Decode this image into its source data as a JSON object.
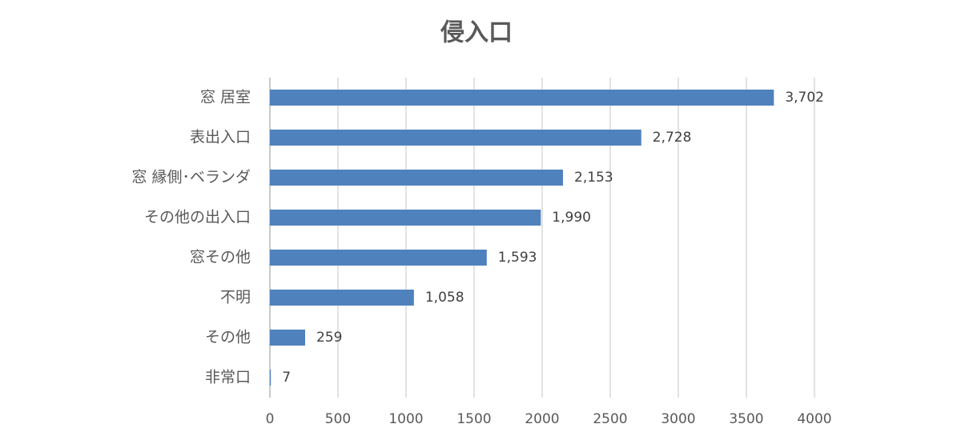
{
  "chart_data": {
    "type": "bar",
    "orientation": "horizontal",
    "title": "侵入口",
    "categories": [
      "窓 居室",
      "表出入口",
      "窓 縁側･ベランダ",
      "その他の出入口",
      "窓その他",
      "不明",
      "その他",
      "非常口"
    ],
    "values": [
      3702,
      2728,
      2153,
      1990,
      1593,
      1058,
      259,
      7
    ],
    "value_labels": [
      "3,702",
      "2,728",
      "2,153",
      "1,990",
      "1,593",
      "1,058",
      "259",
      "7"
    ],
    "color": "#4f81bd",
    "xlim": [
      0,
      4000
    ],
    "xticks": [
      0,
      500,
      1000,
      1500,
      2000,
      2500,
      3000,
      3500,
      4000
    ],
    "grid": true
  }
}
